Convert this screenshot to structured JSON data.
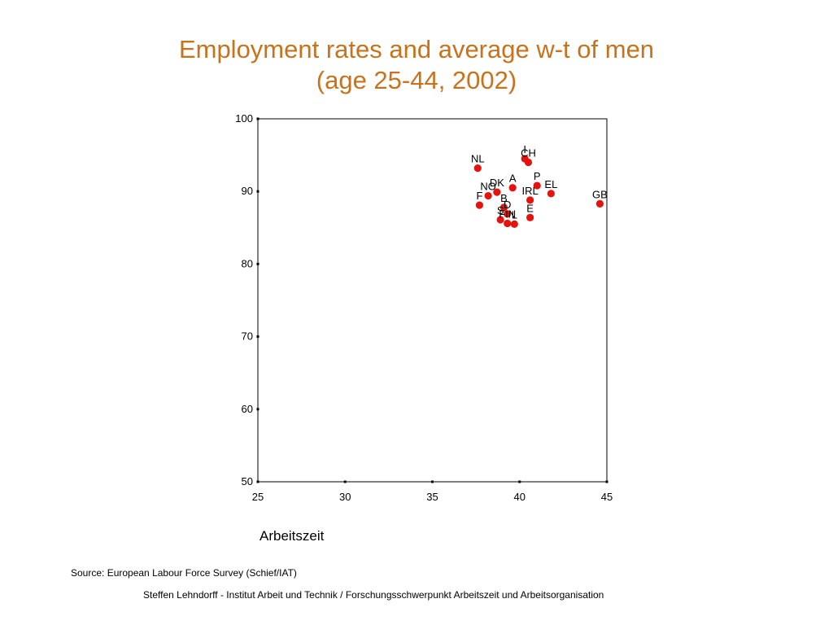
{
  "slide": {
    "title_line1": "Employment rates and average w-t of men",
    "title_line2": "(age 25-44, 2002)",
    "source": "Source: European Labour Force Survey (Schief/IAT)",
    "footer": "Steffen Lehndorff - Institut Arbeit und Technik / Forschungsschwerpunkt Arbeitszeit und Arbeitsorganisation"
  },
  "chart_data": {
    "type": "scatter",
    "title": "",
    "xlabel": "Arbeitszeit",
    "ylabel": "",
    "xlim": [
      25,
      45
    ],
    "ylim": [
      50,
      100
    ],
    "xticks": [
      25,
      30,
      35,
      40,
      45
    ],
    "yticks": [
      50,
      60,
      70,
      80,
      90,
      100
    ],
    "grid": false,
    "marker_color": "#e8120c",
    "points": [
      {
        "label": "I",
        "x": 40.3,
        "y": 94.5
      },
      {
        "label": "CH",
        "x": 40.5,
        "y": 94.0
      },
      {
        "label": "NL",
        "x": 37.6,
        "y": 93.2
      },
      {
        "label": "P",
        "x": 41.0,
        "y": 90.8
      },
      {
        "label": "A",
        "x": 39.6,
        "y": 90.5
      },
      {
        "label": "EL",
        "x": 41.8,
        "y": 89.7
      },
      {
        "label": "DK",
        "x": 38.7,
        "y": 89.9
      },
      {
        "label": "NO",
        "x": 38.2,
        "y": 89.4
      },
      {
        "label": "IRL",
        "x": 40.6,
        "y": 88.8
      },
      {
        "label": "GB",
        "x": 44.6,
        "y": 88.3
      },
      {
        "label": "F",
        "x": 37.7,
        "y": 88.1
      },
      {
        "label": "B",
        "x": 39.1,
        "y": 87.8
      },
      {
        "label": "D",
        "x": 39.3,
        "y": 86.9
      },
      {
        "label": "E",
        "x": 40.6,
        "y": 86.4
      },
      {
        "label": "S",
        "x": 38.9,
        "y": 86.1
      },
      {
        "label": "FIN",
        "x": 39.3,
        "y": 85.6
      },
      {
        "label": "L",
        "x": 39.7,
        "y": 85.5
      }
    ]
  }
}
